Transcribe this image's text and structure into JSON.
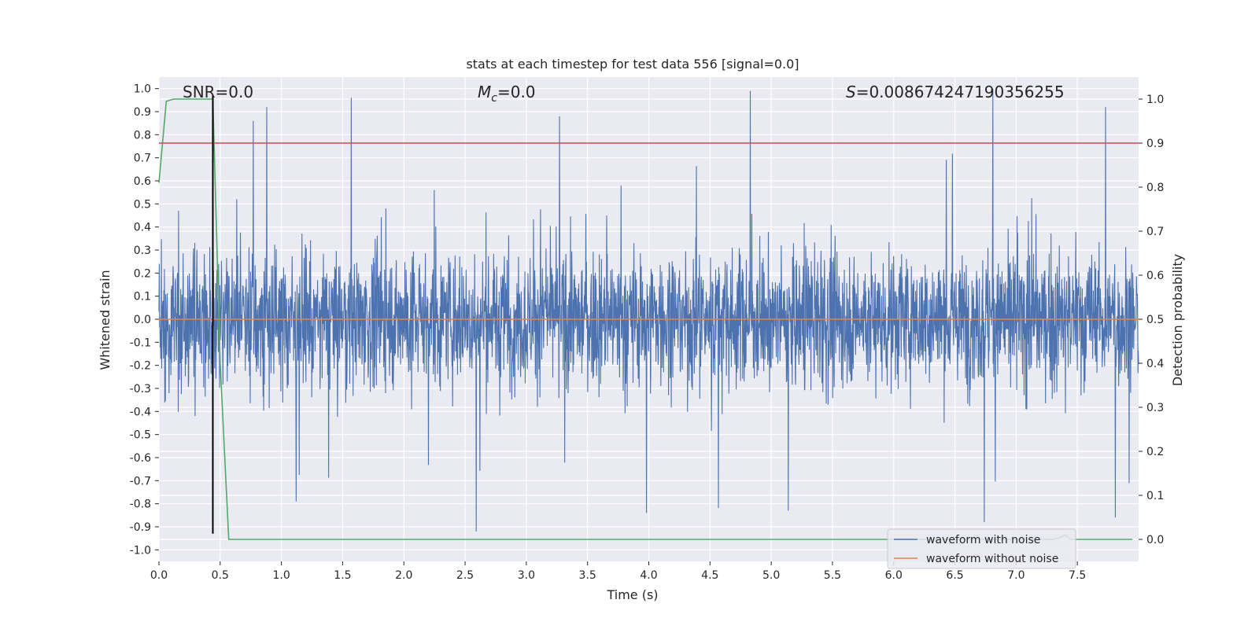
{
  "chart_data": {
    "type": "line",
    "title": "stats at each timestep for test data 556 [signal=0.0]",
    "xlabel": "Time (s)",
    "ylabel_left": "Whitened strain",
    "ylabel_right": "Detection probability",
    "xlim": [
      0.0,
      8.0
    ],
    "ylim_left": [
      -1.05,
      1.05
    ],
    "ylim_right": [
      -0.05,
      1.05
    ],
    "x_ticks": [
      "0.0",
      "0.5",
      "1.0",
      "1.5",
      "2.0",
      "2.5",
      "3.0",
      "3.5",
      "4.0",
      "4.5",
      "5.0",
      "5.5",
      "6.0",
      "6.5",
      "7.0",
      "7.5"
    ],
    "y_ticks_left": [
      "1.0",
      "0.9",
      "0.8",
      "0.7",
      "0.6",
      "0.5",
      "0.4",
      "0.3",
      "0.2",
      "0.1",
      "0.0",
      "-0.1",
      "-0.2",
      "-0.3",
      "-0.4",
      "-0.5",
      "-0.6",
      "-0.7",
      "-0.8",
      "-0.9",
      "-1.0"
    ],
    "y_ticks_right": [
      "1.0",
      "0.9",
      "0.8",
      "0.7",
      "0.6",
      "0.5",
      "0.4",
      "0.3",
      "0.2",
      "0.1",
      "0.0"
    ],
    "grid": true,
    "annotations": {
      "snr": "SNR=0.0",
      "mc_symbol": "M",
      "mc_sub": "c",
      "mc_value": "=0.0",
      "s_symbol": "S",
      "s_value": "=0.008674247190356255"
    },
    "series": [
      {
        "name": "waveform with noise",
        "color": "#4c72b0",
        "axis": "left",
        "description": "dense whitened noise, amplitude mostly within about ±0.4 with spikes reaching about ±1.0",
        "peak_spikes": [
          {
            "x": 0.44,
            "y": 0.95
          },
          {
            "x": 0.77,
            "y": 0.86
          },
          {
            "x": 0.88,
            "y": 0.92
          },
          {
            "x": 1.57,
            "y": 0.96
          },
          {
            "x": 3.27,
            "y": 0.88
          },
          {
            "x": 4.83,
            "y": 0.99
          },
          {
            "x": 6.81,
            "y": 1.0
          },
          {
            "x": 7.73,
            "y": 0.92
          }
        ],
        "trough_spikes": [
          {
            "x": 2.59,
            "y": -0.92
          },
          {
            "x": 3.98,
            "y": -0.84
          },
          {
            "x": 5.14,
            "y": -0.83
          },
          {
            "x": 6.74,
            "y": -0.88
          },
          {
            "x": 7.81,
            "y": -0.86
          },
          {
            "x": 1.12,
            "y": -0.79
          }
        ]
      },
      {
        "name": "waveform without noise",
        "color": "#dd8452",
        "axis": "left",
        "x": [
          0.0,
          8.0
        ],
        "y": [
          0.0,
          0.0
        ]
      },
      {
        "name": "detection probability",
        "color": "#55a868",
        "axis": "right",
        "x": [
          0.0,
          0.06,
          0.12,
          0.2,
          0.3,
          0.38,
          0.44,
          0.5,
          0.57,
          1.0,
          7.3,
          7.35,
          7.4,
          7.45,
          7.95
        ],
        "y": [
          0.81,
          0.995,
          1.0,
          1.0,
          1.0,
          1.0,
          1.0,
          0.4,
          0.0,
          0.0,
          0.0,
          0.003,
          0.01,
          0.0,
          0.0
        ]
      },
      {
        "name": "threshold",
        "color": "#c44e52",
        "axis": "right",
        "x": [
          0.0,
          8.0
        ],
        "y": [
          0.9,
          0.9
        ]
      },
      {
        "name": "marker",
        "color": "#000000",
        "axis": "left",
        "x": [
          0.44,
          0.44
        ],
        "y": [
          -0.93,
          0.97
        ]
      }
    ],
    "legend": {
      "placement": "lower-right",
      "entries": [
        {
          "label": "waveform with noise",
          "color": "#4c72b0"
        },
        {
          "label": "waveform without noise",
          "color": "#dd8452"
        }
      ]
    },
    "colors": {
      "plot_background": "#eaeaf2",
      "grid": "#ffffff",
      "text": "#262626"
    }
  }
}
